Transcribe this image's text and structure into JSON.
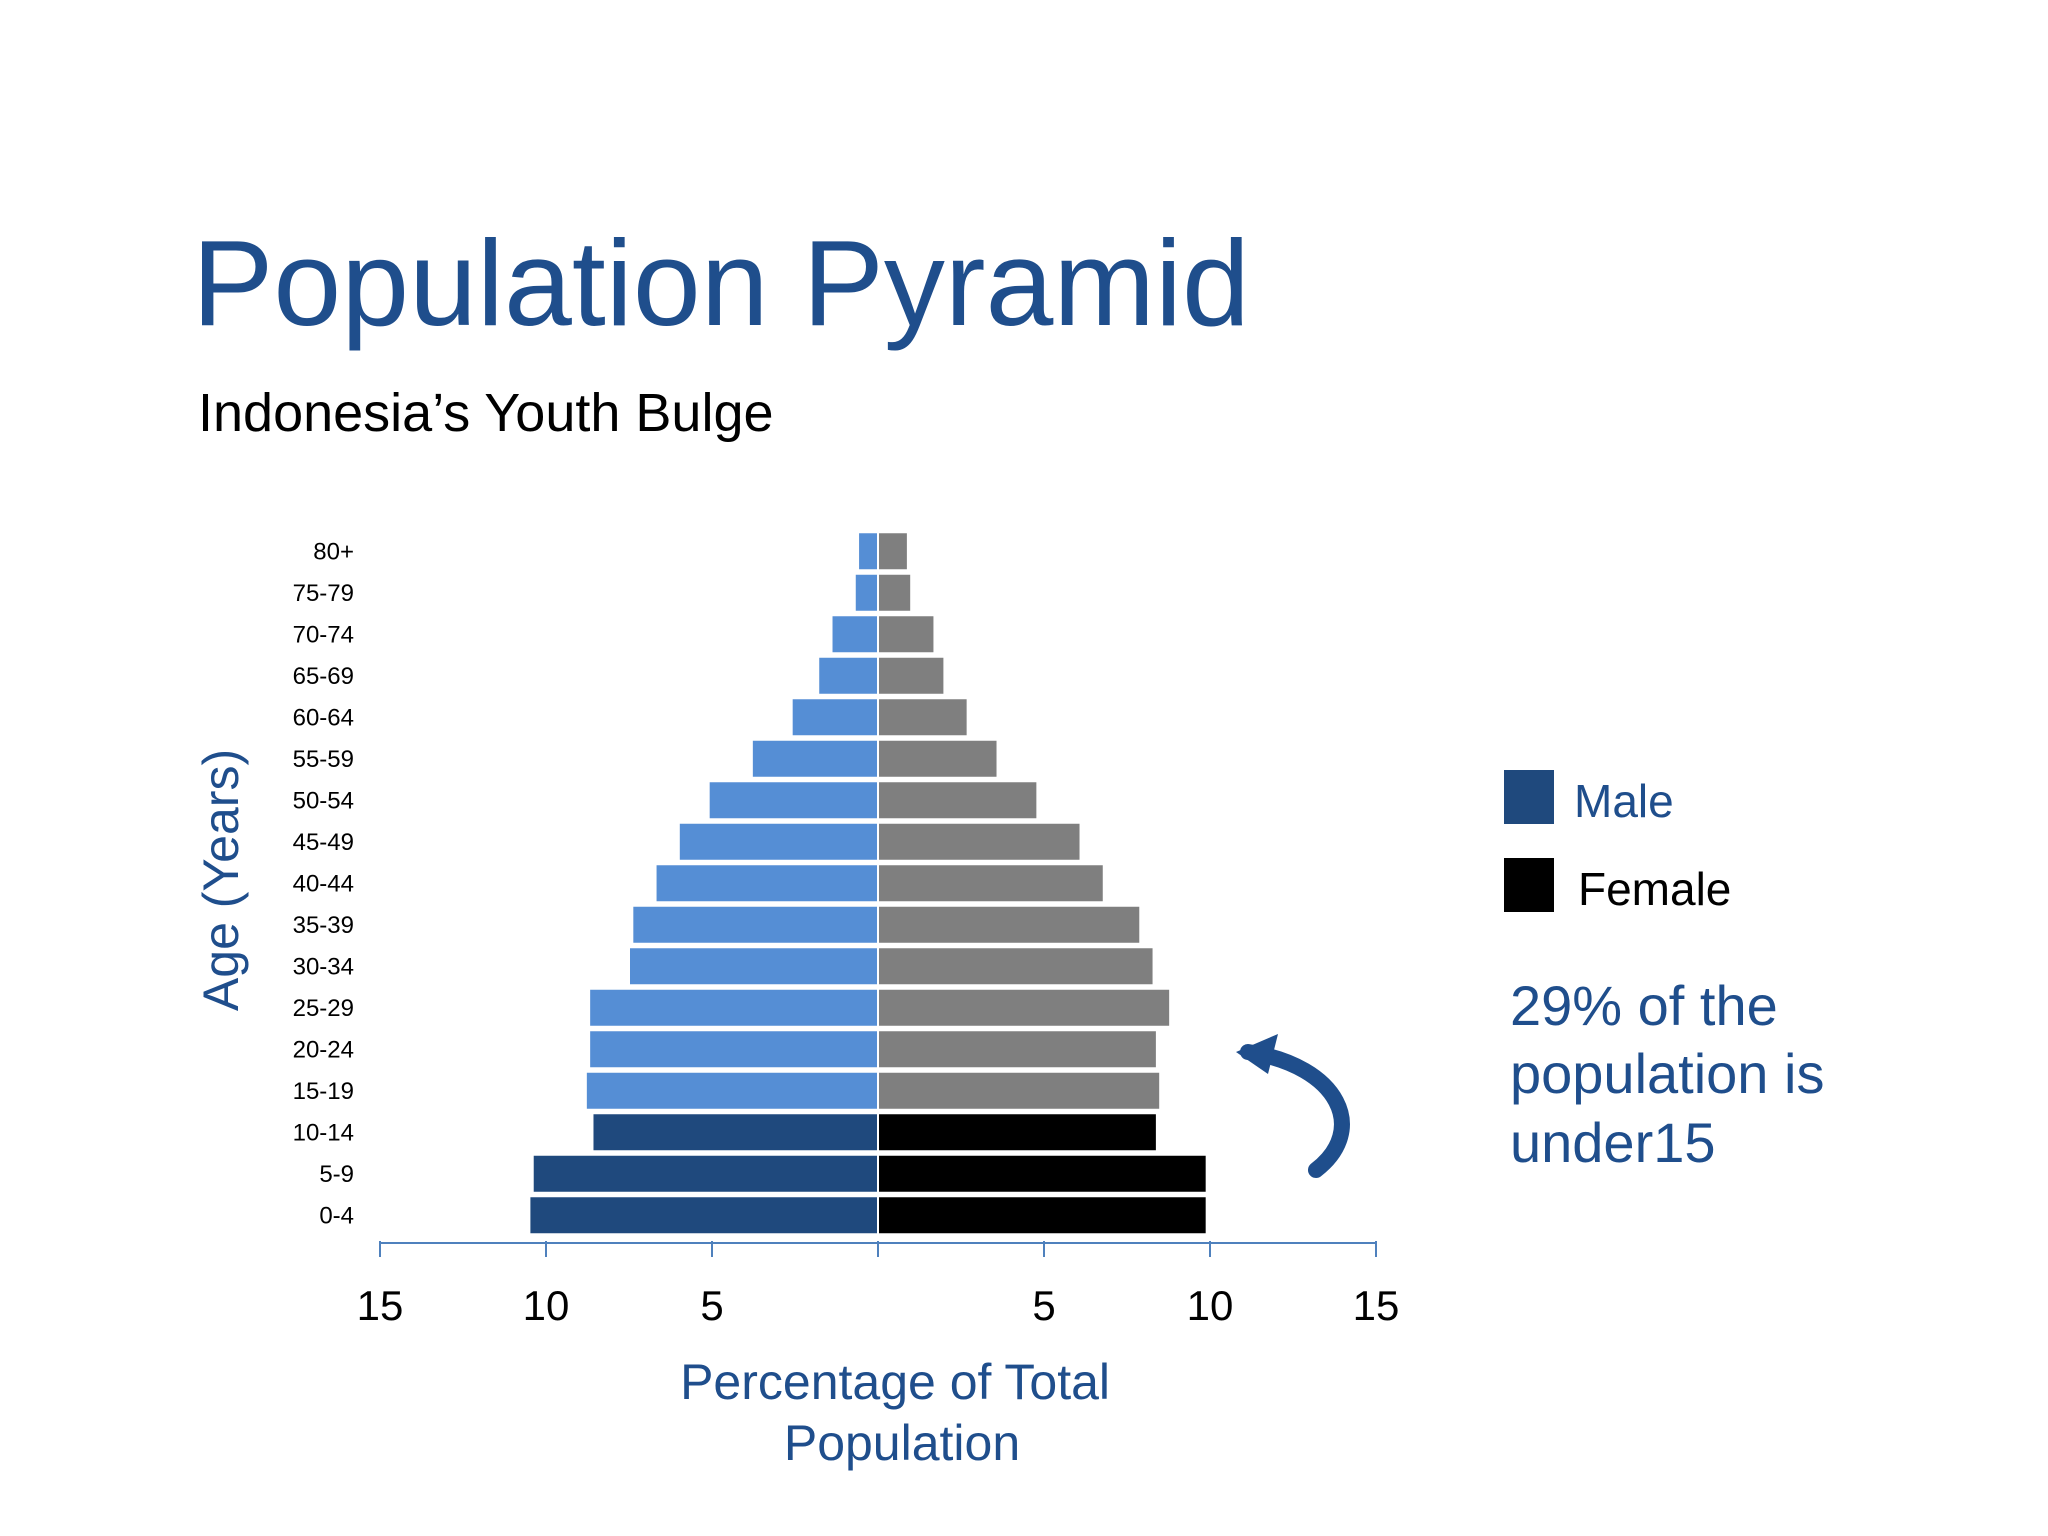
{
  "slide": {
    "title": "Population Pyramid",
    "subtitle": "Indonesia’s Youth Bulge",
    "note": "29% of the population is under15"
  },
  "legend": [
    {
      "label": "Male",
      "color": "#1f497d",
      "text_color": "#1f4e8c"
    },
    {
      "label": "Female",
      "color": "#000000",
      "text_color": "#000000"
    }
  ],
  "colors": {
    "male_under15": "#1f497d",
    "male_15plus": "#558ed5",
    "female_under15": "#000000",
    "female_15plus": "#7f7f7f",
    "axis": "#4f81bd",
    "label_blue": "#1f4e8c",
    "arrow": "#1f4e8c"
  },
  "chart_data": {
    "type": "bar",
    "orientation": "horizontal",
    "ylabel": "Age (Years)",
    "xlabel": "Percentage of Total Population",
    "xlim": [
      -15,
      15
    ],
    "xticks": [
      {
        "value": -15,
        "label": "15"
      },
      {
        "value": -10,
        "label": "10"
      },
      {
        "value": -5,
        "label": "5"
      },
      {
        "value": 5,
        "label": "5"
      },
      {
        "value": 10,
        "label": "10"
      },
      {
        "value": 15,
        "label": "15"
      }
    ],
    "categories": [
      "0-4",
      "5-9",
      "10-14",
      "15-19",
      "20-24",
      "25-29",
      "30-34",
      "35-39",
      "40-44",
      "45-49",
      "50-54",
      "55-59",
      "60-64",
      "65-69",
      "70-74",
      "75-79",
      "80+"
    ],
    "series": [
      {
        "name": "Male",
        "values": [
          10.5,
          10.4,
          8.6,
          8.8,
          8.7,
          8.7,
          7.5,
          7.4,
          6.7,
          6.0,
          5.1,
          3.8,
          2.6,
          1.8,
          1.4,
          0.7,
          0.6
        ]
      },
      {
        "name": "Female",
        "values": [
          9.9,
          9.9,
          8.4,
          8.5,
          8.4,
          8.8,
          8.3,
          7.9,
          6.8,
          6.1,
          4.8,
          3.6,
          2.7,
          2.0,
          1.7,
          1.0,
          0.9
        ]
      }
    ],
    "highlight": "under 15 (0-4, 5-9, 10-14) shown in darker colors",
    "grid": false
  }
}
